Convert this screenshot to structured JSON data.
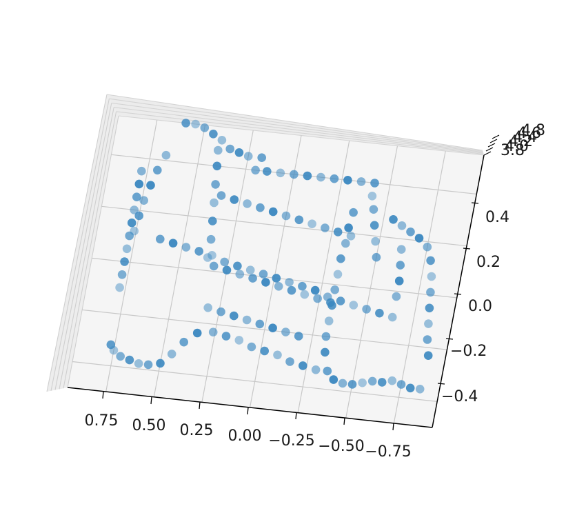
{
  "chart_data": {
    "type": "scatter",
    "projection": "3d",
    "title": "",
    "xlabel": "",
    "ylabel": "",
    "zlabel": "",
    "marker_color": "#3a87c0",
    "pane_color": "#f2f2f2",
    "grid": true,
    "x_ticks": [
      "0.75",
      "0.50",
      "0.25",
      "0.00",
      "−0.25",
      "−0.50",
      "−0.75"
    ],
    "y_ticks": [
      "3.8",
      "4.0",
      "4.2",
      "4.4",
      "4.6",
      "4.8"
    ],
    "z_ticks": [
      "0.4",
      "0.2",
      "0.0",
      "−0.2",
      "−0.4"
    ],
    "xlim": [
      0.95,
      -0.95
    ],
    "zlim": [
      -0.5,
      0.55
    ],
    "points_xz": [
      [
        0.78,
        -0.1
      ],
      [
        0.78,
        -0.05
      ],
      [
        0.78,
        0.0
      ],
      [
        0.78,
        0.05
      ],
      [
        0.78,
        0.1
      ],
      [
        0.78,
        0.15
      ],
      [
        0.78,
        0.2
      ],
      [
        0.78,
        0.25
      ],
      [
        0.78,
        0.3
      ],
      [
        0.78,
        0.35
      ],
      [
        0.77,
        -0.32
      ],
      [
        0.75,
        -0.34
      ],
      [
        0.71,
        -0.36
      ],
      [
        0.66,
        -0.37
      ],
      [
        0.61,
        -0.38
      ],
      [
        0.56,
        -0.38
      ],
      [
        0.5,
        -0.37
      ],
      [
        0.45,
        -0.33
      ],
      [
        0.4,
        -0.28
      ],
      [
        0.34,
        -0.24
      ],
      [
        0.26,
        -0.23
      ],
      [
        0.19,
        -0.24
      ],
      [
        0.12,
        -0.25
      ],
      [
        0.05,
        -0.27
      ],
      [
        -0.02,
        -0.28
      ],
      [
        -0.09,
        -0.29
      ],
      [
        -0.16,
        -0.31
      ],
      [
        -0.23,
        -0.32
      ],
      [
        -0.3,
        -0.33
      ],
      [
        -0.36,
        -0.33
      ],
      [
        -0.4,
        -0.36
      ],
      [
        -0.45,
        -0.37
      ],
      [
        -0.5,
        -0.37
      ],
      [
        -0.55,
        -0.36
      ],
      [
        -0.6,
        -0.35
      ],
      [
        -0.65,
        -0.35
      ],
      [
        -0.7,
        -0.34
      ],
      [
        -0.75,
        -0.35
      ],
      [
        -0.8,
        -0.36
      ],
      [
        -0.85,
        -0.36
      ],
      [
        0.62,
        0.1
      ],
      [
        0.55,
        0.09
      ],
      [
        0.48,
        0.08
      ],
      [
        0.41,
        0.07
      ],
      [
        0.34,
        0.06
      ],
      [
        0.27,
        0.04
      ],
      [
        0.2,
        0.03
      ],
      [
        0.13,
        0.02
      ],
      [
        0.06,
        0.01
      ],
      [
        -0.01,
        0.0
      ],
      [
        -0.08,
        -0.01
      ],
      [
        -0.15,
        -0.02
      ],
      [
        -0.22,
        -0.03
      ],
      [
        -0.29,
        -0.05
      ],
      [
        -0.36,
        -0.06
      ],
      [
        -0.43,
        -0.07
      ],
      [
        -0.5,
        -0.08
      ],
      [
        -0.57,
        -0.09
      ],
      [
        -0.64,
        -0.1
      ],
      [
        0.35,
        0.29
      ],
      [
        0.28,
        0.28
      ],
      [
        0.21,
        0.27
      ],
      [
        0.14,
        0.26
      ],
      [
        0.07,
        0.25
      ],
      [
        0.0,
        0.24
      ],
      [
        -0.07,
        0.23
      ],
      [
        -0.14,
        0.22
      ],
      [
        -0.21,
        0.21
      ],
      [
        -0.28,
        0.2
      ],
      [
        -0.35,
        0.19
      ],
      [
        0.32,
        0.02
      ],
      [
        0.25,
        0.01
      ],
      [
        0.18,
        0.0
      ],
      [
        0.11,
        -0.01
      ],
      [
        0.04,
        -0.02
      ],
      [
        -0.03,
        -0.03
      ],
      [
        -0.1,
        -0.04
      ],
      [
        -0.17,
        -0.05
      ],
      [
        -0.24,
        -0.06
      ],
      [
        -0.31,
        -0.07
      ],
      [
        0.31,
        -0.14
      ],
      [
        0.24,
        -0.15
      ],
      [
        0.17,
        -0.16
      ],
      [
        0.1,
        -0.17
      ],
      [
        0.03,
        -0.18
      ],
      [
        -0.04,
        -0.19
      ],
      [
        -0.11,
        -0.2
      ],
      [
        -0.18,
        -0.21
      ],
      [
        0.36,
        0.05
      ],
      [
        0.36,
        0.12
      ],
      [
        0.37,
        0.19
      ],
      [
        0.38,
        0.26
      ],
      [
        0.39,
        0.33
      ],
      [
        0.4,
        0.4
      ],
      [
        0.41,
        0.46
      ],
      [
        -0.34,
        0.28
      ],
      [
        -0.33,
        0.22
      ],
      [
        -0.33,
        0.16
      ],
      [
        -0.32,
        0.1
      ],
      [
        -0.32,
        0.04
      ],
      [
        -0.32,
        -0.02
      ],
      [
        -0.32,
        -0.08
      ],
      [
        -0.32,
        -0.14
      ],
      [
        -0.32,
        -0.2
      ],
      [
        -0.33,
        -0.26
      ],
      [
        0.67,
        0.42
      ],
      [
        0.7,
        0.36
      ],
      [
        0.72,
        0.3
      ],
      [
        0.74,
        0.24
      ],
      [
        0.75,
        0.18
      ],
      [
        0.76,
        0.12
      ],
      [
        0.2,
        0.4
      ],
      [
        0.14,
        0.4
      ],
      [
        0.07,
        0.4
      ],
      [
        0.0,
        0.4
      ],
      [
        -0.07,
        0.4
      ],
      [
        -0.14,
        0.4
      ],
      [
        -0.21,
        0.4
      ],
      [
        -0.28,
        0.4
      ],
      [
        -0.35,
        0.4
      ],
      [
        -0.42,
        0.4
      ],
      [
        -0.42,
        0.35
      ],
      [
        -0.44,
        0.3
      ],
      [
        -0.46,
        0.24
      ],
      [
        -0.48,
        0.18
      ],
      [
        -0.5,
        0.12
      ],
      [
        -0.55,
        0.27
      ],
      [
        -0.6,
        0.25
      ],
      [
        -0.65,
        0.23
      ],
      [
        -0.7,
        0.21
      ],
      [
        -0.75,
        0.18
      ],
      [
        -0.78,
        0.13
      ],
      [
        -0.8,
        0.07
      ],
      [
        -0.81,
        0.01
      ],
      [
        -0.82,
        -0.05
      ],
      [
        -0.83,
        -0.11
      ],
      [
        -0.84,
        -0.17
      ],
      [
        -0.86,
        -0.23
      ],
      [
        -0.62,
        0.16
      ],
      [
        -0.63,
        0.1
      ],
      [
        -0.64,
        0.04
      ],
      [
        -0.64,
        -0.02
      ],
      [
        0.6,
        0.55
      ],
      [
        0.55,
        0.55
      ],
      [
        0.5,
        0.54
      ],
      [
        0.45,
        0.52
      ],
      [
        0.4,
        0.5
      ],
      [
        0.35,
        0.47
      ],
      [
        0.3,
        0.46
      ],
      [
        0.25,
        0.45
      ],
      [
        0.18,
        0.45
      ]
    ]
  }
}
